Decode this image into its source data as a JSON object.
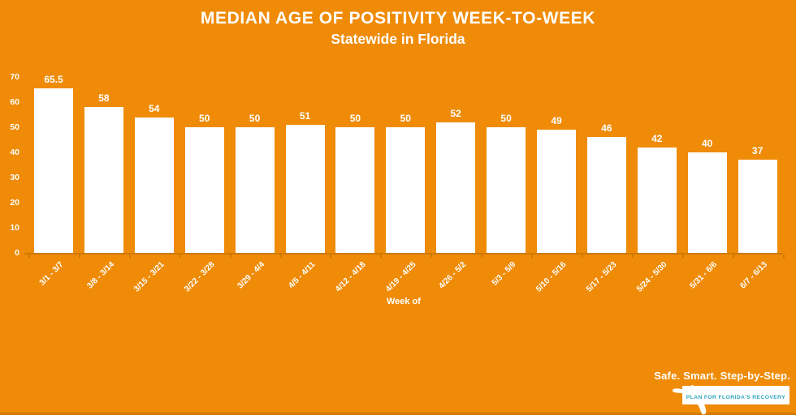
{
  "header": {
    "title": "MEDIAN AGE OF POSITIVITY WEEK-TO-WEEK",
    "subtitle": "Statewide in Florida"
  },
  "chart_data": {
    "type": "bar",
    "title": "MEDIAN AGE OF POSITIVITY WEEK-TO-WEEK",
    "subtitle": "Statewide in Florida",
    "categories": [
      "3/1 - 3/7",
      "3/8 - 3/14",
      "3/15 - 3/21",
      "3/22 - 3/28",
      "3/29 - 4/4",
      "4/5 - 4/11",
      "4/12 - 4/18",
      "4/19 - 4/25",
      "4/26 - 5/2",
      "5/3 - 5/9",
      "5/10 - 5/16",
      "5/17 - 5/23",
      "5/24 - 5/30",
      "5/31 - 6/6",
      "6/7 - 6/13"
    ],
    "values": [
      65.5,
      58,
      54,
      50,
      50,
      51,
      50,
      50,
      52,
      50,
      49,
      46,
      42,
      40,
      37
    ],
    "xlabel": "Week of",
    "ylabel": "",
    "ylim": [
      0,
      70
    ],
    "yticks": [
      0,
      10,
      20,
      30,
      40,
      50,
      60,
      70
    ],
    "grid": false,
    "legend": false,
    "bar_color": "#FFFFFF",
    "value_labels": true
  },
  "colors": {
    "background": "#EF8B07",
    "axis": "#CE7A04",
    "bar": "#FFFFFF",
    "text": "#FFFFFF",
    "logo_box_text": "#2FA7B9"
  },
  "logo": {
    "tagline": "Safe. Smart. Step-by-Step.",
    "box_label": "PLAN FOR FLORIDA'S RECOVERY"
  }
}
